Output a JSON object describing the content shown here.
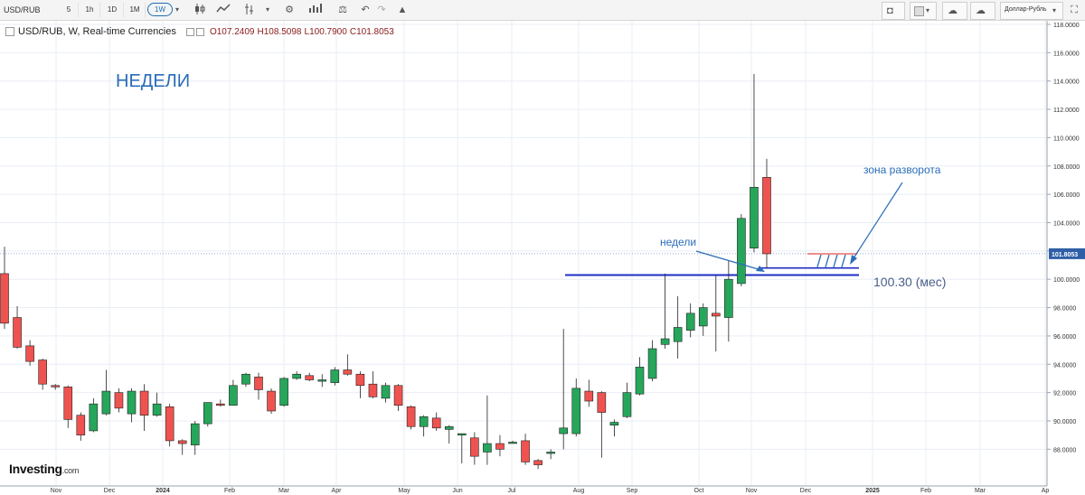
{
  "toolbar": {
    "symbol": "USD/RUB",
    "intervals": [
      "5",
      "1h",
      "1D",
      "1M",
      "1W"
    ],
    "active_interval": "1W",
    "right_label": "Доллар-Рубль",
    "icons": [
      "candlestick-icon",
      "line-style-icon",
      "indicators-icon",
      "settings-icon",
      "compare-icon",
      "balance-icon",
      "undo-icon",
      "redo-icon",
      "alert-icon",
      "camera-icon",
      "color-box-icon",
      "cloud-load-icon",
      "cloud-save-icon",
      "fullscreen-icon"
    ]
  },
  "legend": {
    "title": "USD/RUB, W, Real-time Currencies",
    "open": "O107.2409",
    "high": "H108.5098",
    "low": "L100.7900",
    "close": "C101.8053"
  },
  "logo": {
    "brand": "Investing",
    "suffix": ".com"
  },
  "colors": {
    "up": "#26a65b",
    "down": "#ef5350",
    "annotation": "#2a6db8",
    "level": "#1f2dc4",
    "grid": "#e9eef5"
  },
  "chart_data": {
    "type": "candlestick",
    "title": "НЕДЕЛИ",
    "ylim": [
      87,
      118
    ],
    "y_ticks": [
      "88.0000",
      "90.0000",
      "92.0000",
      "94.0000",
      "96.0000",
      "98.0000",
      "100.0000",
      "102.0000",
      "104.0000",
      "106.0000",
      "108.0000",
      "110.0000",
      "112.0000",
      "114.0000",
      "116.0000",
      "118.0000"
    ],
    "x_labels": [
      "Nov",
      "Dec",
      "2024",
      "Feb",
      "Mar",
      "Apr",
      "May",
      "Jun",
      "Jul",
      "Aug",
      "Sep",
      "Oct",
      "Nov",
      "Dec",
      "2025",
      "Feb",
      "Mar",
      "Ap"
    ],
    "current_price": "101.8053",
    "candles": [
      {
        "o": 100.4,
        "h": 102.3,
        "l": 96.5,
        "c": 96.9
      },
      {
        "o": 97.3,
        "h": 98.1,
        "l": 95.1,
        "c": 95.2
      },
      {
        "o": 95.3,
        "h": 95.7,
        "l": 93.9,
        "c": 94.2
      },
      {
        "o": 94.3,
        "h": 94.4,
        "l": 92.2,
        "c": 92.6
      },
      {
        "o": 92.5,
        "h": 92.6,
        "l": 92.2,
        "c": 92.4
      },
      {
        "o": 92.4,
        "h": 92.5,
        "l": 89.5,
        "c": 90.1
      },
      {
        "o": 90.4,
        "h": 90.6,
        "l": 88.6,
        "c": 89.0
      },
      {
        "o": 89.3,
        "h": 91.6,
        "l": 89.2,
        "c": 91.2
      },
      {
        "o": 90.5,
        "h": 93.6,
        "l": 90.4,
        "c": 92.1
      },
      {
        "o": 92.0,
        "h": 92.3,
        "l": 90.6,
        "c": 90.9
      },
      {
        "o": 90.5,
        "h": 92.3,
        "l": 89.9,
        "c": 92.1
      },
      {
        "o": 92.1,
        "h": 92.6,
        "l": 89.3,
        "c": 90.4
      },
      {
        "o": 90.4,
        "h": 92.0,
        "l": 90.3,
        "c": 91.2
      },
      {
        "o": 91.0,
        "h": 91.2,
        "l": 88.2,
        "c": 88.6
      },
      {
        "o": 88.6,
        "h": 88.7,
        "l": 87.6,
        "c": 88.4
      },
      {
        "o": 88.3,
        "h": 90.0,
        "l": 87.6,
        "c": 89.8
      },
      {
        "o": 89.8,
        "h": 91.3,
        "l": 89.6,
        "c": 91.3
      },
      {
        "o": 91.2,
        "h": 91.5,
        "l": 91.0,
        "c": 91.1
      },
      {
        "o": 91.1,
        "h": 92.9,
        "l": 91.1,
        "c": 92.5
      },
      {
        "o": 92.6,
        "h": 93.4,
        "l": 92.4,
        "c": 93.3
      },
      {
        "o": 93.1,
        "h": 93.4,
        "l": 91.5,
        "c": 92.2
      },
      {
        "o": 92.1,
        "h": 92.3,
        "l": 90.5,
        "c": 90.7
      },
      {
        "o": 91.1,
        "h": 93.1,
        "l": 91.0,
        "c": 93.0
      },
      {
        "o": 93.0,
        "h": 93.5,
        "l": 92.9,
        "c": 93.3
      },
      {
        "o": 93.2,
        "h": 93.4,
        "l": 92.8,
        "c": 92.9
      },
      {
        "o": 92.8,
        "h": 93.3,
        "l": 92.4,
        "c": 92.9
      },
      {
        "o": 92.7,
        "h": 93.8,
        "l": 92.5,
        "c": 93.6
      },
      {
        "o": 93.6,
        "h": 94.7,
        "l": 93.2,
        "c": 93.3
      },
      {
        "o": 93.3,
        "h": 93.5,
        "l": 91.6,
        "c": 92.5
      },
      {
        "o": 92.6,
        "h": 93.5,
        "l": 91.6,
        "c": 91.7
      },
      {
        "o": 91.6,
        "h": 92.7,
        "l": 91.3,
        "c": 92.5
      },
      {
        "o": 92.5,
        "h": 92.6,
        "l": 90.7,
        "c": 91.1
      },
      {
        "o": 91.0,
        "h": 91.1,
        "l": 89.4,
        "c": 89.6
      },
      {
        "o": 89.6,
        "h": 90.4,
        "l": 88.9,
        "c": 90.3
      },
      {
        "o": 90.2,
        "h": 90.6,
        "l": 89.3,
        "c": 89.5
      },
      {
        "o": 89.4,
        "h": 89.7,
        "l": 88.4,
        "c": 89.6
      },
      {
        "o": 89.0,
        "h": 89.1,
        "l": 87.0,
        "c": 89.1
      },
      {
        "o": 88.8,
        "h": 89.2,
        "l": 86.9,
        "c": 87.5
      },
      {
        "o": 87.8,
        "h": 91.8,
        "l": 86.9,
        "c": 88.4
      },
      {
        "o": 88.4,
        "h": 89.0,
        "l": 87.5,
        "c": 88.0
      },
      {
        "o": 88.5,
        "h": 88.6,
        "l": 88.4,
        "c": 88.5
      },
      {
        "o": 88.6,
        "h": 89.1,
        "l": 86.9,
        "c": 87.1
      },
      {
        "o": 87.2,
        "h": 87.3,
        "l": 86.6,
        "c": 86.9
      },
      {
        "o": 87.7,
        "h": 88.0,
        "l": 87.3,
        "c": 87.8
      },
      {
        "o": 89.1,
        "h": 96.5,
        "l": 88.0,
        "c": 89.5
      },
      {
        "o": 89.1,
        "h": 93.0,
        "l": 88.9,
        "c": 92.3
      },
      {
        "o": 92.1,
        "h": 92.9,
        "l": 91.0,
        "c": 91.4
      },
      {
        "o": 92.0,
        "h": 92.1,
        "l": 87.4,
        "c": 90.6
      },
      {
        "o": 89.7,
        "h": 90.1,
        "l": 88.9,
        "c": 89.9
      },
      {
        "o": 90.3,
        "h": 92.7,
        "l": 90.2,
        "c": 92.0
      },
      {
        "o": 91.9,
        "h": 94.5,
        "l": 91.8,
        "c": 93.8
      },
      {
        "o": 93.0,
        "h": 95.7,
        "l": 92.8,
        "c": 95.1
      },
      {
        "o": 95.4,
        "h": 100.4,
        "l": 95.1,
        "c": 95.8
      },
      {
        "o": 95.6,
        "h": 98.8,
        "l": 94.4,
        "c": 96.6
      },
      {
        "o": 96.4,
        "h": 98.3,
        "l": 95.9,
        "c": 97.6
      },
      {
        "o": 96.7,
        "h": 98.3,
        "l": 96.0,
        "c": 98.0
      },
      {
        "o": 97.6,
        "h": 100.3,
        "l": 94.9,
        "c": 97.4
      },
      {
        "o": 97.3,
        "h": 101.3,
        "l": 95.6,
        "c": 100.0
      },
      {
        "o": 99.7,
        "h": 104.6,
        "l": 99.5,
        "c": 104.3
      },
      {
        "o": 102.2,
        "h": 114.5,
        "l": 101.9,
        "c": 106.5
      },
      {
        "o": 107.2,
        "h": 108.5,
        "l": 100.8,
        "c": 101.8
      }
    ],
    "levels": [
      {
        "value": 100.3,
        "label": "100.30 (мес)"
      },
      {
        "value": 100.8,
        "label": ""
      },
      {
        "value": 101.8,
        "label": ""
      }
    ],
    "annotations": [
      "недели",
      "зона разворота"
    ]
  }
}
